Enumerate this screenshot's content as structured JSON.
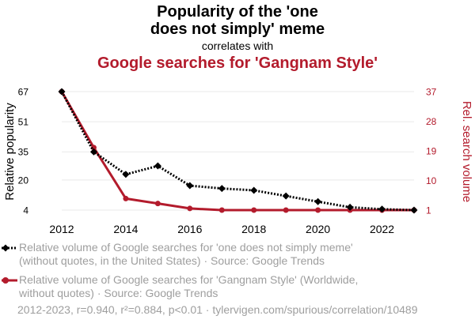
{
  "titles": {
    "line1": "Popularity of the 'one",
    "line2": "does not simply' meme",
    "connector": "correlates with",
    "second": "Google searches for 'Gangnam Style'"
  },
  "colors": {
    "series1": "#000000",
    "series2": "#b31b2c",
    "grid": "#e9e9e9",
    "muted": "#9e9e9e"
  },
  "chart_data": {
    "type": "line",
    "x": [
      2012,
      2013,
      2014,
      2015,
      2016,
      2017,
      2018,
      2019,
      2020,
      2021,
      2022,
      2023
    ],
    "xlim": [
      2012,
      2023
    ],
    "xticks": [
      "2012",
      "2014",
      "2016",
      "2018",
      "2020",
      "2022"
    ],
    "ylabel_left": "Relative popularity",
    "ylabel_right": "Rel. search volume",
    "yleft_ticks": [
      "4",
      "20",
      "35",
      "51",
      "67"
    ],
    "yleft_lim": [
      4,
      67
    ],
    "yright_ticks": [
      "1",
      "10",
      "19",
      "28",
      "37"
    ],
    "yright_lim": [
      1,
      37
    ],
    "grid": "horizontal",
    "legend_position": "bottom",
    "series": [
      {
        "name": "Relative volume of Google searches for 'one does not simply meme' (without quotes, in the United States) · Source: Google Trends",
        "legend_line1": "Relative volume of Google searches for 'one does not simply meme'",
        "legend_line2": "(without quotes, in the United States) · Source: Google Trends",
        "axis": "left",
        "style": "dotted",
        "marker": "diamond",
        "values": [
          67,
          35,
          23,
          27.5,
          17,
          15.5,
          14.5,
          11.5,
          8.5,
          5.5,
          4.5,
          4
        ]
      },
      {
        "name": "Relative volume of Google searches for 'Gangnam Style' (Worldwide, without quotes) · Source: Google Trends",
        "legend_line1": "Relative volume of Google searches for 'Gangnam Style' (Worldwide,",
        "legend_line2": "without quotes) · Source: Google Trends",
        "axis": "right",
        "style": "solid",
        "marker": "circle",
        "values": [
          37,
          20,
          4.5,
          3,
          1.5,
          1,
          1,
          1,
          1,
          1,
          1,
          1
        ]
      }
    ]
  },
  "footer": "2012-2023, r=0.940, r²=0.884, p<0.01 · tylervigen.com/spurious/correlation/10489"
}
